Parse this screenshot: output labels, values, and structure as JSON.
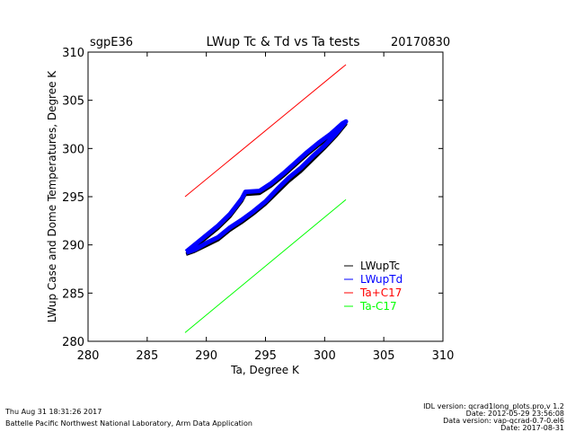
{
  "chart_data": {
    "type": "line",
    "site": "sgpE36",
    "title": "LWup Tc & Td vs Ta tests",
    "date": "20170830",
    "xlabel": "Ta, Degree K",
    "ylabel": "LWup Case and Dome Temperatures, Degree K",
    "xlim": [
      280,
      310
    ],
    "ylim": [
      280,
      310
    ],
    "xticks": [
      "280",
      "285",
      "290",
      "295",
      "300",
      "305",
      "310"
    ],
    "yticks": [
      "280",
      "285",
      "290",
      "295",
      "300",
      "305",
      "310"
    ],
    "legend_position": "lower-right",
    "series": [
      {
        "name": "LWupTc",
        "color": "#000000",
        "x": [
          288.3,
          289,
          290,
          291,
          292,
          293,
          294,
          295,
          296,
          297,
          298,
          299,
          300,
          301,
          301.8,
          301.5,
          300.5,
          299.5,
          298.5,
          297.5,
          296.5,
          295.5,
          294.5,
          293.3,
          293,
          292.5,
          292,
          291,
          290,
          289,
          288.3
        ],
        "y": [
          289.0,
          289.3,
          289.9,
          290.5,
          291.5,
          292.3,
          293.2,
          294.2,
          295.4,
          296.6,
          297.6,
          298.8,
          300.0,
          301.3,
          302.5,
          302.3,
          301.2,
          300.3,
          299.3,
          298.2,
          297.1,
          296.1,
          295.3,
          295.2,
          294.5,
          293.7,
          292.9,
          291.7,
          290.7,
          289.7,
          289.1
        ]
      },
      {
        "name": "LWupTd",
        "color": "#0000ff",
        "x": [
          288.3,
          289,
          290,
          291,
          292,
          293,
          294,
          295,
          296,
          297,
          298,
          299,
          300,
          301,
          301.8,
          301.5,
          300.5,
          299.5,
          298.5,
          297.5,
          296.5,
          295.5,
          294.5,
          293.3,
          293,
          292.5,
          292,
          291,
          290,
          289,
          288.3
        ],
        "y": [
          289.2,
          289.5,
          290.2,
          290.8,
          291.8,
          292.6,
          293.5,
          294.5,
          295.8,
          297.0,
          298.0,
          299.2,
          300.3,
          301.6,
          302.8,
          302.6,
          301.5,
          300.6,
          299.6,
          298.5,
          297.4,
          296.4,
          295.6,
          295.5,
          294.8,
          294.0,
          293.2,
          292.0,
          291.0,
          290.0,
          289.3
        ]
      },
      {
        "name": "Ta+C17",
        "color": "#ff0000",
        "x": [
          288.2,
          301.8
        ],
        "y": [
          295.0,
          308.7
        ]
      },
      {
        "name": "Ta-C17",
        "color": "#00ff00",
        "x": [
          288.2,
          301.8
        ],
        "y": [
          280.9,
          294.7
        ]
      }
    ]
  },
  "footer": {
    "timestamp": "Thu Aug 31 18:31:26 2017",
    "lab": "Battelle Pacific Northwest National Laboratory, Arm Data Application",
    "idl_version": "IDL version: qcrad1long_plots.pro,v 1.2",
    "idl_date": "Date: 2012-05-29 23:56:08",
    "data_version": "Data version: vap-qcrad-0.7-0.el6",
    "data_date": "Date: 2017-08-31"
  }
}
